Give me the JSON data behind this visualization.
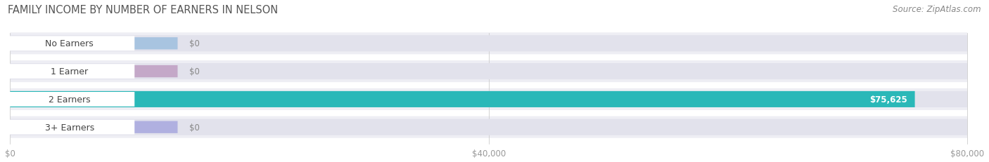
{
  "title": "FAMILY INCOME BY NUMBER OF EARNERS IN NELSON",
  "source": "Source: ZipAtlas.com",
  "categories": [
    "No Earners",
    "1 Earner",
    "2 Earners",
    "3+ Earners"
  ],
  "values": [
    0,
    0,
    75625,
    0
  ],
  "max_value": 80000,
  "bar_colors": [
    "#a8c4e0",
    "#c4a8c8",
    "#2ab8b8",
    "#b0b0e0"
  ],
  "bar_bg_color": "#e2e2ec",
  "row_bg_color": "#eeeef4",
  "value_labels": [
    "$0",
    "$0",
    "$75,625",
    "$0"
  ],
  "xticks": [
    0,
    40000,
    80000
  ],
  "xtick_labels": [
    "$0",
    "$40,000",
    "$80,000"
  ],
  "title_fontsize": 10.5,
  "source_fontsize": 8.5,
  "label_fontsize": 9,
  "value_fontsize": 8.5,
  "title_color": "#555555",
  "source_color": "#888888",
  "label_text_color": "#444444",
  "value_color_on_bar": "#ffffff",
  "value_color_off_bar": "#888888"
}
